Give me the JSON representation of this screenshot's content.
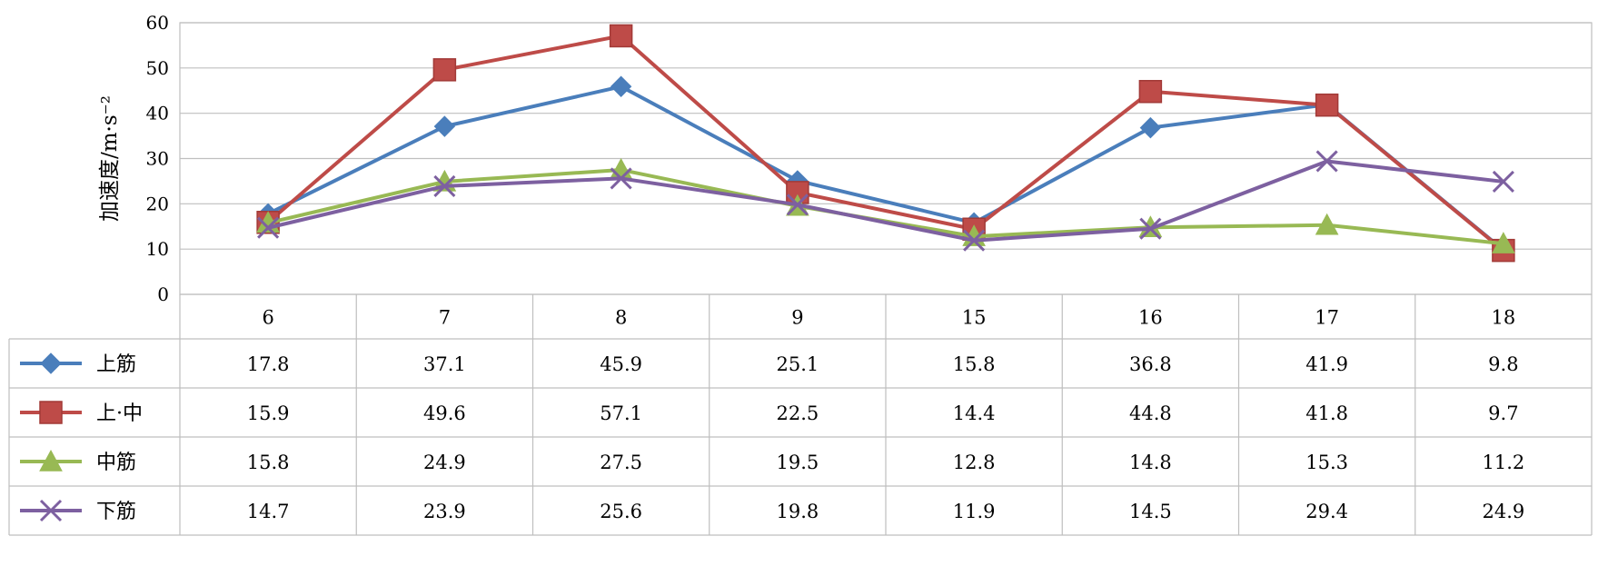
{
  "chart_data": {
    "type": "line",
    "title": "",
    "xlabel": "",
    "ylabel": "加速度/m·s⁻²",
    "ylim": [
      0,
      60
    ],
    "yticks": [
      0,
      10,
      20,
      30,
      40,
      50,
      60
    ],
    "grid": true,
    "legend": "data-table-left",
    "categories": [
      "6",
      "7",
      "8",
      "9",
      "15",
      "16",
      "17",
      "18"
    ],
    "series": [
      {
        "name": "上筋",
        "color": "#4a7ebb",
        "marker": "diamond",
        "values": [
          17.8,
          37.1,
          45.9,
          25.1,
          15.8,
          36.8,
          41.9,
          9.8
        ],
        "labels": [
          "17.8",
          "37.1",
          "45.9",
          "25.1",
          "15.8",
          "36.8",
          "41.9",
          "9.8"
        ]
      },
      {
        "name": "上·中",
        "color": "#be4b48",
        "marker": "square",
        "values": [
          15.9,
          49.6,
          57.1,
          22.5,
          14.4,
          44.8,
          41.8,
          9.7
        ],
        "labels": [
          "15.9",
          "49.6",
          "57.1",
          "22.5",
          "14.4",
          "44.8",
          "41.8",
          "9.7"
        ]
      },
      {
        "name": "中筋",
        "color": "#98b954",
        "marker": "triangle",
        "values": [
          15.8,
          24.9,
          27.5,
          19.5,
          12.8,
          14.8,
          15.3,
          11.2
        ],
        "labels": [
          "15.8",
          "24.9",
          "27.5",
          "19.5",
          "12.8",
          "14.8",
          "15.3",
          "11.2"
        ]
      },
      {
        "name": "下筋",
        "color": "#7d60a0",
        "marker": "x",
        "values": [
          14.7,
          23.9,
          25.6,
          19.8,
          11.9,
          14.5,
          29.4,
          24.9
        ],
        "labels": [
          "14.7",
          "23.9",
          "25.6",
          "19.8",
          "11.9",
          "14.5",
          "29.4",
          "24.9"
        ]
      }
    ]
  }
}
